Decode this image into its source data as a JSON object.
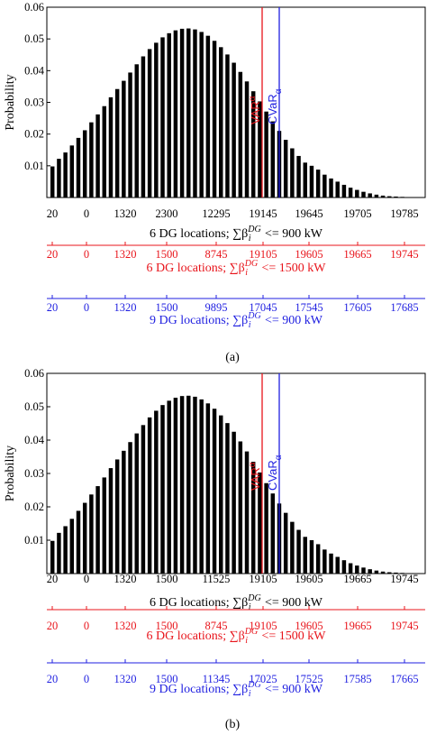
{
  "chart_data": [
    {
      "type": "bar",
      "subcaption": "(a)",
      "ylabel": "Probability",
      "ylim": [
        0,
        0.06
      ],
      "yticks": [
        "0.01",
        "0.02",
        "0.03",
        "0.04",
        "0.05",
        "0.06"
      ],
      "ytick_values": [
        0.01,
        0.02,
        0.03,
        0.04,
        0.05,
        0.06
      ],
      "num_bars": 43,
      "values": [
        0.0098,
        0.0122,
        0.0142,
        0.0164,
        0.0188,
        0.0212,
        0.0237,
        0.0262,
        0.0288,
        0.0316,
        0.0342,
        0.0368,
        0.0394,
        0.042,
        0.0445,
        0.0468,
        0.0488,
        0.0505,
        0.0518,
        0.0527,
        0.0532,
        0.0533,
        0.053,
        0.0522,
        0.051,
        0.0494,
        0.0474,
        0.0451,
        0.0425,
        0.0396,
        0.0366,
        0.0335,
        0.0303,
        0.0271,
        0.024,
        0.021,
        0.0182,
        0.0155,
        0.0131,
        0.011,
        0.01,
        0.0088,
        0.0072
      ],
      "tail_values": [
        0.006,
        0.005,
        0.004,
        0.0031,
        0.0024,
        0.0018,
        0.0013,
        0.0009,
        0.0006,
        0.0004,
        0.0003,
        0.0002,
        0.0001,
        0.0001
      ],
      "markers": [
        {
          "label": "VAR",
          "superscript": "α",
          "color": "#e8141b"
        },
        {
          "label": "CVaR",
          "subscript": "α",
          "color": "#1f1fe0"
        }
      ],
      "x_axes": [
        {
          "ticks": [
            "20",
            "0",
            "1320",
            "2300",
            "12295",
            "19145",
            "19645",
            "19705",
            "19785"
          ],
          "label": "6 DG locations; ∑β",
          "label_sup": "DG",
          "label_sub": "i",
          "label_tail": " <= 900 kW",
          "color": "#000000"
        },
        {
          "ticks": [
            "20",
            "0",
            "1320",
            "1500",
            "8745",
            "19105",
            "19605",
            "19665",
            "19745"
          ],
          "label": "6 DG locations; ∑β",
          "label_sup": "DG",
          "label_sub": "i",
          "label_tail": " <= 1500 kW",
          "color": "#e8141b"
        },
        {
          "ticks": [
            "20",
            "0",
            "1320",
            "1500",
            "9895",
            "17045",
            "17545",
            "17605",
            "17685"
          ],
          "label": "9 DG locations; ∑β",
          "label_sup": "DG",
          "label_sub": "i",
          "label_tail": " <= 900 kW",
          "color": "#1f1fe0"
        }
      ]
    },
    {
      "type": "bar",
      "subcaption": "(b)",
      "ylabel": "Probability",
      "ylim": [
        0,
        0.06
      ],
      "yticks": [
        "0.01",
        "0.02",
        "0.03",
        "0.04",
        "0.05",
        "0.06"
      ],
      "ytick_values": [
        0.01,
        0.02,
        0.03,
        0.04,
        0.05,
        0.06
      ],
      "num_bars": 43,
      "values": [
        0.0098,
        0.0122,
        0.0142,
        0.0164,
        0.0188,
        0.0212,
        0.0237,
        0.0262,
        0.0288,
        0.0316,
        0.0342,
        0.0368,
        0.0394,
        0.042,
        0.0445,
        0.0468,
        0.0488,
        0.0505,
        0.0518,
        0.0527,
        0.0532,
        0.0533,
        0.053,
        0.0522,
        0.051,
        0.0494,
        0.0474,
        0.0451,
        0.0425,
        0.0396,
        0.0366,
        0.0335,
        0.0303,
        0.0271,
        0.024,
        0.021,
        0.0182,
        0.0155,
        0.0131,
        0.011,
        0.01,
        0.0088,
        0.0072
      ],
      "tail_values": [
        0.006,
        0.005,
        0.004,
        0.0031,
        0.0024,
        0.0018,
        0.0013,
        0.0009,
        0.0006,
        0.0004,
        0.0003,
        0.0002,
        0.0001,
        0.0001
      ],
      "markers": [
        {
          "label": "VAR",
          "superscript": "α",
          "color": "#e8141b"
        },
        {
          "label": "CVaR",
          "subscript": "α",
          "color": "#1f1fe0"
        }
      ],
      "x_axes": [
        {
          "ticks": [
            "20",
            "0",
            "1320",
            "1500",
            "11525",
            "19105",
            "19605",
            "19665",
            "19745"
          ],
          "label": "6 DG locations; ∑β",
          "label_sup": "DG",
          "label_sub": "i",
          "label_tail": " <= 900 kW",
          "color": "#000000"
        },
        {
          "ticks": [
            "20",
            "0",
            "1320",
            "1500",
            "8745",
            "19105",
            "19605",
            "19665",
            "19745"
          ],
          "label": "6 DG locations; ∑β",
          "label_sup": "DG",
          "label_sub": "i",
          "label_tail": " <= 1500 kW",
          "color": "#e8141b"
        },
        {
          "ticks": [
            "20",
            "0",
            "1320",
            "1500",
            "11345",
            "17025",
            "17525",
            "17585",
            "17665"
          ],
          "label": "9 DG locations; ∑β",
          "label_sup": "DG",
          "label_sub": "i",
          "label_tail": " <= 900 kW",
          "color": "#1f1fe0"
        }
      ]
    }
  ]
}
